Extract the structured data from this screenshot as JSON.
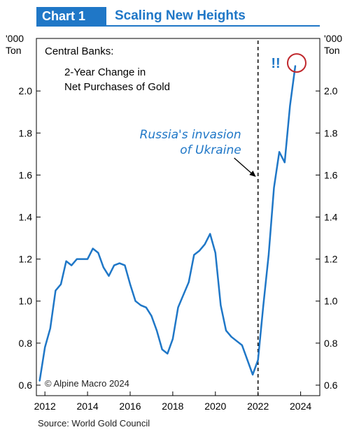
{
  "header": {
    "chart_label": "Chart 1",
    "title": "Scaling New Heights"
  },
  "source": "Source: World Gold Council",
  "colors": {
    "accent": "#1f77c7",
    "series_line": "#1f77c7",
    "annotation_blue": "#1f77c7",
    "highlight_circle": "#c0282d",
    "axes": "#000000"
  },
  "chart_data": {
    "type": "line",
    "title": "",
    "legend_text": [
      "Central Banks:",
      "2-Year Change in",
      "Net Purchases of Gold"
    ],
    "left_axis_unit": [
      "'000",
      "Ton"
    ],
    "right_axis_unit": [
      "'000",
      "Ton"
    ],
    "ylim": [
      0.55,
      2.25
    ],
    "yticks": [
      0.6,
      0.8,
      1.0,
      1.2,
      1.4,
      1.6,
      1.8,
      2.0
    ],
    "ytick_labels": [
      "0.6",
      "0.8",
      "1.0",
      "1.2",
      "1.4",
      "1.6",
      "1.8",
      "2.0"
    ],
    "xlim": [
      2011.6,
      2024.9
    ],
    "xticks": [
      2012,
      2014,
      2016,
      2018,
      2020,
      2022,
      2024
    ],
    "xtick_labels": [
      "2012",
      "2014",
      "2016",
      "2018",
      "2020",
      "2022",
      "2024"
    ],
    "grid": false,
    "copyright": "© Alpine Macro 2024",
    "series": [
      {
        "x": [
          2011.75,
          2012.0,
          2012.25,
          2012.5,
          2012.75,
          2013.0,
          2013.25,
          2013.5,
          2013.75,
          2014.0,
          2014.25,
          2014.5,
          2014.75,
          2015.0,
          2015.25,
          2015.5,
          2015.75,
          2016.0,
          2016.25,
          2016.5,
          2016.75,
          2017.0,
          2017.25,
          2017.5,
          2017.75,
          2018.0,
          2018.25,
          2018.5,
          2018.75,
          2019.0,
          2019.25,
          2019.5,
          2019.75,
          2020.0,
          2020.25,
          2020.5,
          2020.75,
          2021.0,
          2021.25,
          2021.5,
          2021.75,
          2022.0,
          2022.25,
          2022.5,
          2022.75,
          2023.0,
          2023.25,
          2023.5,
          2023.75
        ],
        "y": [
          0.62,
          0.78,
          0.87,
          1.05,
          1.08,
          1.19,
          1.17,
          1.2,
          1.2,
          1.2,
          1.25,
          1.23,
          1.16,
          1.12,
          1.17,
          1.18,
          1.17,
          1.08,
          1.0,
          0.98,
          0.97,
          0.93,
          0.86,
          0.77,
          0.75,
          0.82,
          0.97,
          1.03,
          1.09,
          1.22,
          1.24,
          1.27,
          1.32,
          1.23,
          0.98,
          0.86,
          0.83,
          0.81,
          0.79,
          0.72,
          0.65,
          0.72,
          0.98,
          1.22,
          1.54,
          1.71,
          1.66,
          1.93,
          2.12
        ]
      }
    ],
    "annotations": {
      "invasion_x": 2022.0,
      "invasion_label": [
        "Russia's invasion",
        "of Ukraine"
      ],
      "exclamation": "!!",
      "circle_at": [
        2023.75,
        2.12
      ]
    }
  }
}
